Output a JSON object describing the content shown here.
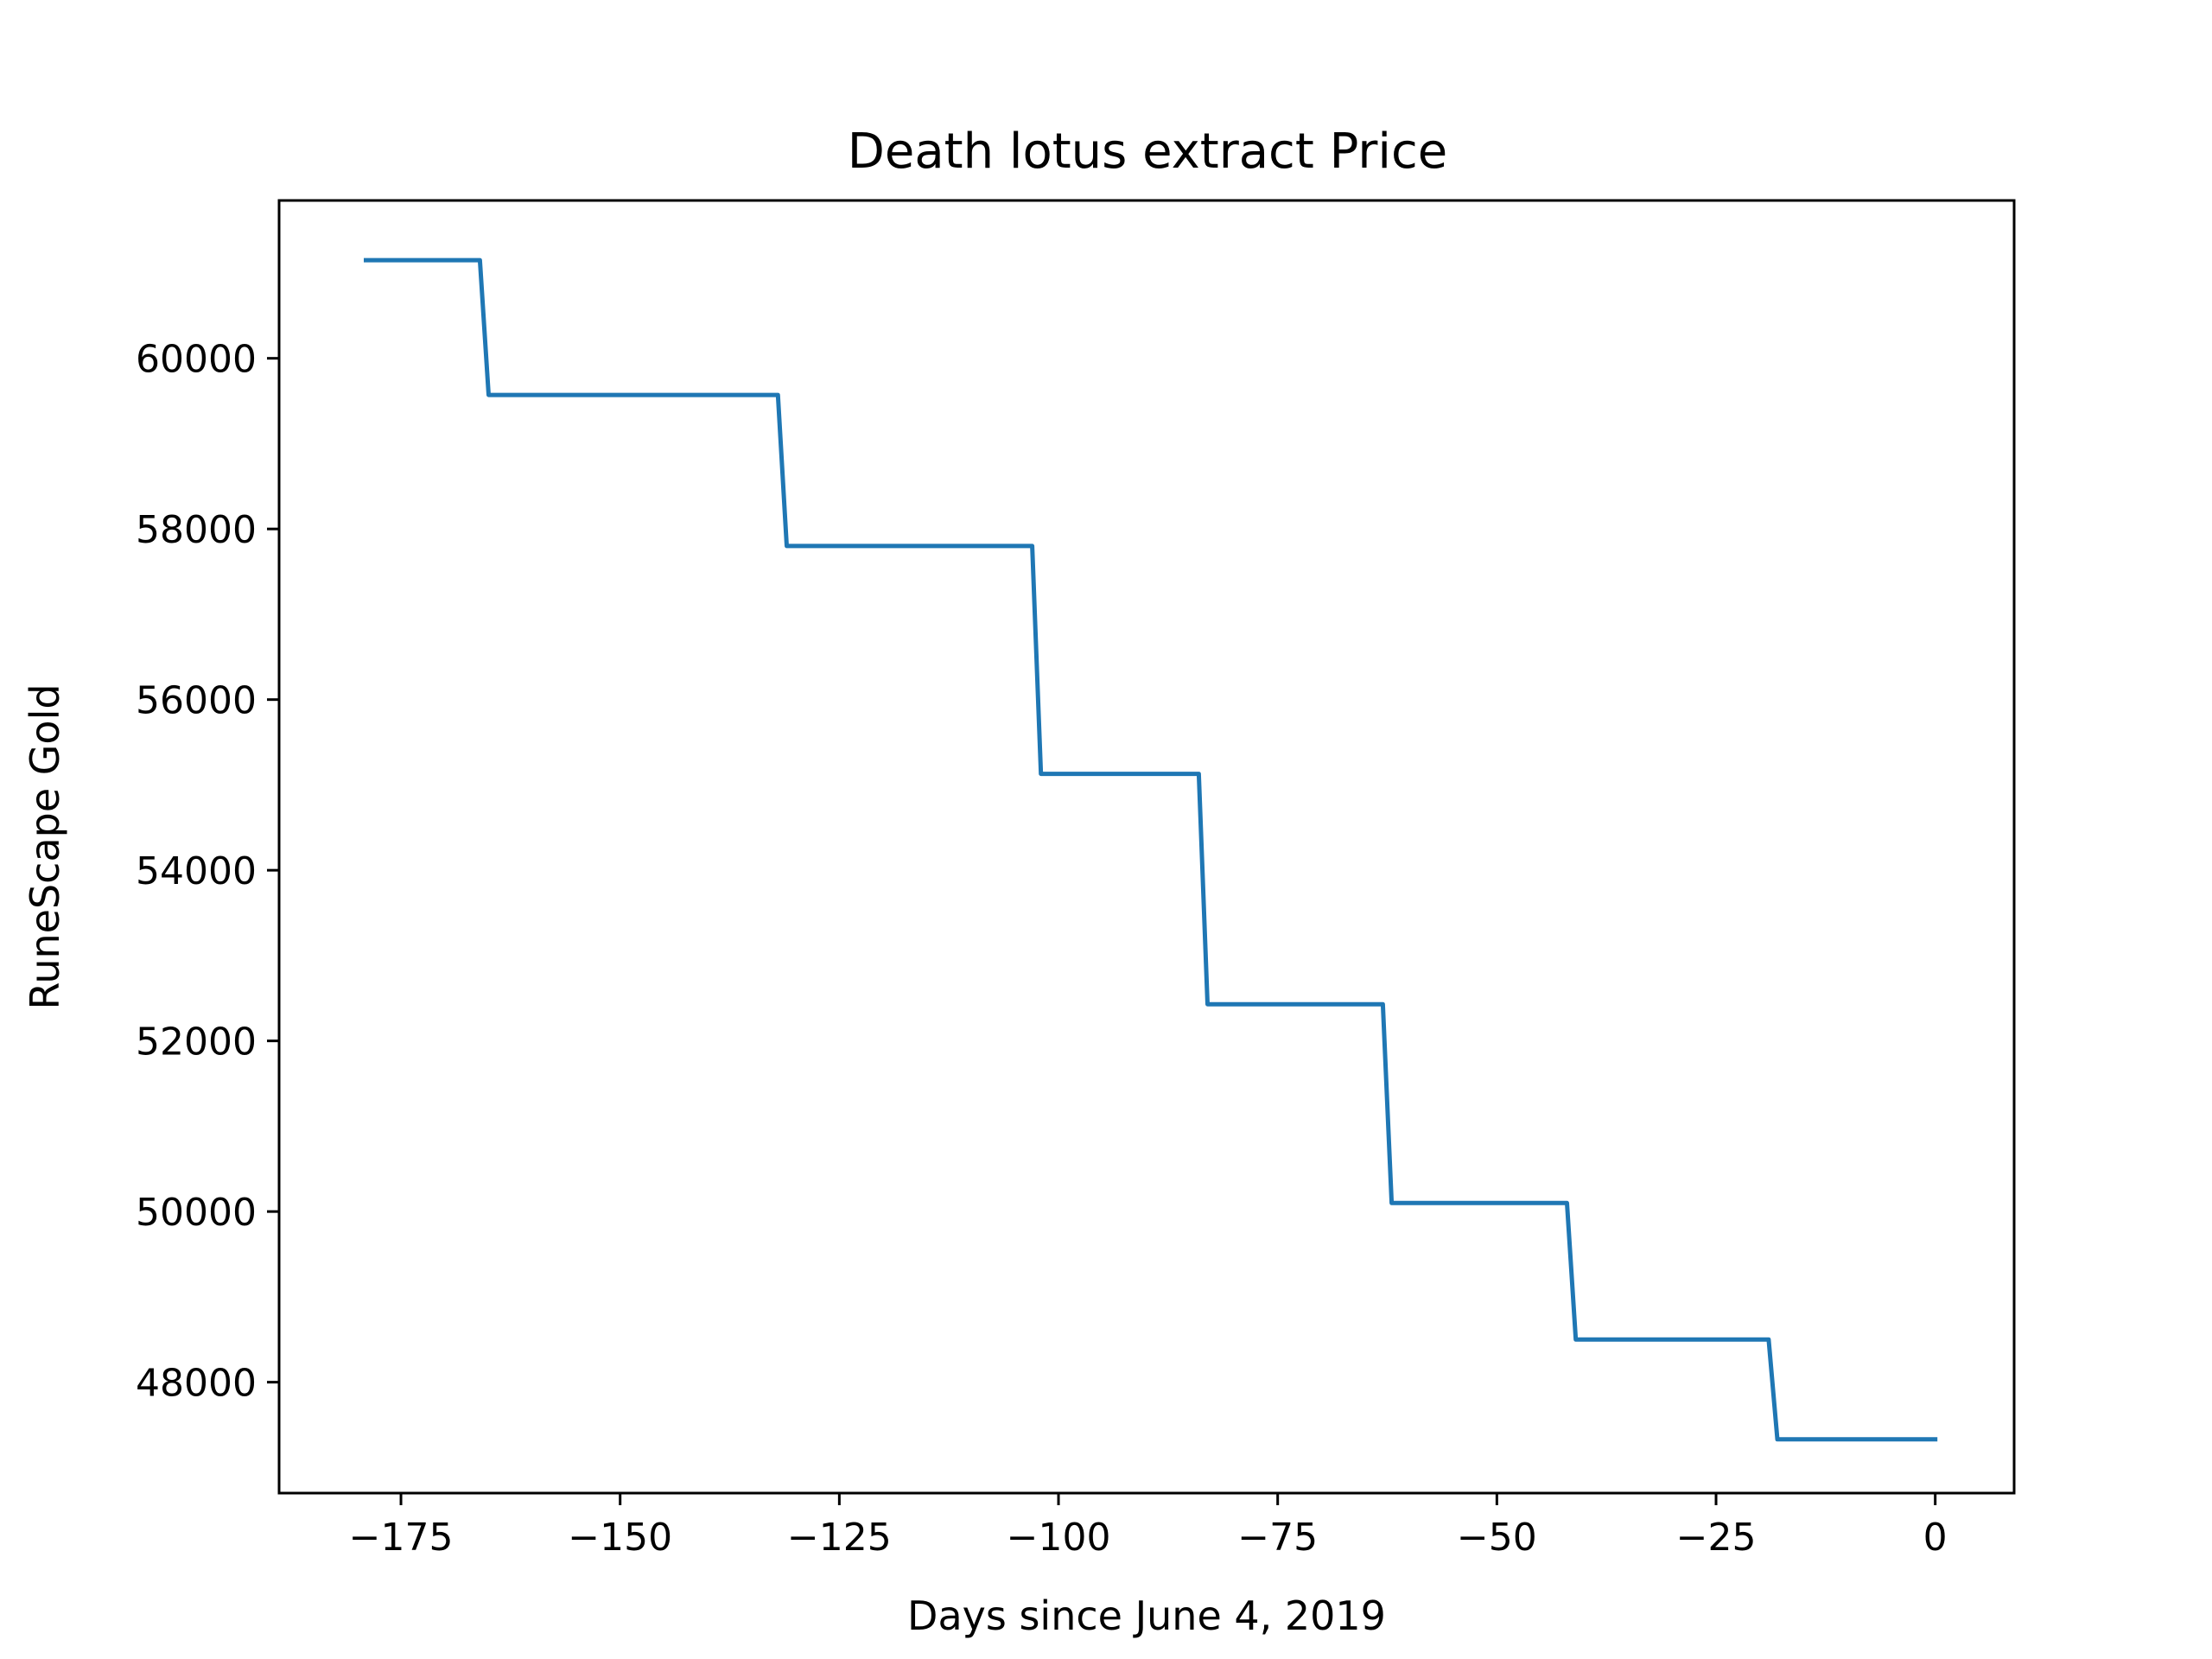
{
  "chart_data": {
    "type": "line",
    "title": "Death lotus extract Price",
    "xlabel": "Days since June 4, 2019",
    "ylabel": "RuneScape Gold",
    "xlim": [
      -188.9,
      9
    ],
    "ylim": [
      46700,
      61850
    ],
    "xticks": [
      -175,
      -150,
      -125,
      -100,
      -75,
      -50,
      -25,
      0
    ],
    "xtick_labels": [
      "−175",
      "−150",
      "−125",
      "−100",
      "−75",
      "−50",
      "−25",
      "0"
    ],
    "yticks": [
      48000,
      50000,
      52000,
      54000,
      56000,
      58000,
      60000
    ],
    "ytick_labels": [
      "48000",
      "50000",
      "52000",
      "54000",
      "56000",
      "58000",
      "60000"
    ],
    "grid": false,
    "legend": "none",
    "series": [
      {
        "color": "#1f77b4",
        "x": [
          -179,
          -166,
          -165,
          -132,
          -131,
          -103,
          -102,
          -84,
          -83,
          -63,
          -62,
          -42,
          -41,
          -19,
          -18,
          0
        ],
        "y": [
          61150,
          61150,
          59570,
          59570,
          57800,
          57800,
          55130,
          55130,
          52430,
          52430,
          50100,
          50100,
          48500,
          48500,
          47330,
          47330
        ]
      }
    ]
  }
}
